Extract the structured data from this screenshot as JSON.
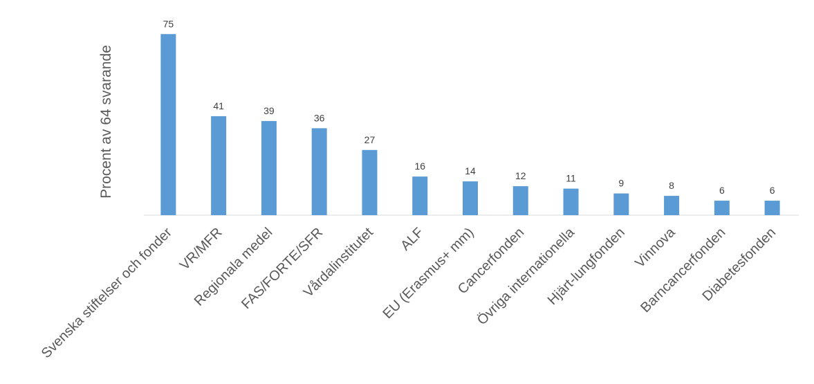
{
  "chart_data": {
    "type": "bar",
    "y_label": "Procent av 64 svarande",
    "categories": [
      "Svenska stiftelser och fonder",
      "VR/MFR",
      "Regionala medel",
      "FAS/FORTE/SFR",
      "Vårdalinstitutet",
      "ALF",
      "EU (Erasmus+ mm)",
      "Cancerfonden",
      "Övriga internationella",
      "Hjärt-lungfonden",
      "Vinnova",
      "Barncancerfonden",
      "Diabetesfonden"
    ],
    "values": [
      75,
      41,
      39,
      36,
      27,
      16,
      14,
      12,
      11,
      9,
      8,
      6,
      6
    ],
    "color": "#5b9bd5"
  }
}
